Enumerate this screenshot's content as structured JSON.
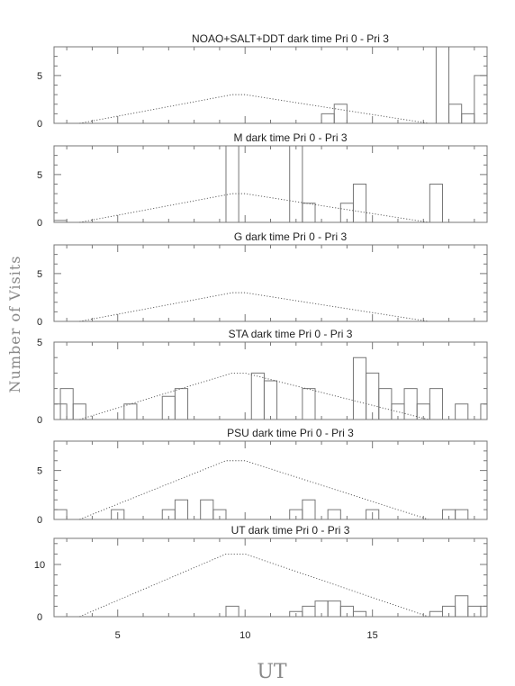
{
  "figure": {
    "ylabel": "Number of Visits",
    "xlabel": "UT"
  },
  "chart_data": [
    {
      "type": "histogram",
      "title": "NOAO+SALT+DDT dark time Pri 0 - Pri 3",
      "xlim": [
        2.5,
        19.5
      ],
      "ylim": [
        0,
        8
      ],
      "yticks": [
        0,
        5
      ],
      "xticks": [
        5,
        10,
        15
      ],
      "bin_width": 0.5,
      "bins": [
        [
          13.0,
          1
        ],
        [
          13.5,
          2
        ],
        [
          17.5,
          8
        ],
        [
          18.0,
          2
        ],
        [
          18.5,
          1
        ],
        [
          19.0,
          5
        ]
      ],
      "availability": [
        [
          3.5,
          0
        ],
        [
          9.5,
          3
        ],
        [
          10.0,
          3
        ],
        [
          17.2,
          0
        ]
      ]
    },
    {
      "type": "histogram",
      "title": "M    dark time Pri 0 - Pri 3",
      "xlim": [
        2.5,
        19.5
      ],
      "ylim": [
        0,
        8
      ],
      "yticks": [
        0,
        5
      ],
      "xticks": [
        5,
        10,
        15
      ],
      "bin_width": 0.5,
      "bins": [
        [
          2.5,
          0.2
        ],
        [
          9.25,
          8
        ],
        [
          11.75,
          8
        ],
        [
          12.25,
          2
        ],
        [
          13.75,
          2
        ],
        [
          14.25,
          4
        ],
        [
          17.25,
          4
        ]
      ],
      "availability": [
        [
          3.5,
          0
        ],
        [
          9.5,
          3
        ],
        [
          10.0,
          3
        ],
        [
          17.2,
          0
        ]
      ]
    },
    {
      "type": "histogram",
      "title": "G    dark time Pri 0 - Pri 3",
      "xlim": [
        2.5,
        19.5
      ],
      "ylim": [
        0,
        8
      ],
      "yticks": [
        0,
        5
      ],
      "xticks": [
        5,
        10,
        15
      ],
      "bin_width": 0.5,
      "bins": [],
      "availability": [
        [
          3.5,
          0
        ],
        [
          9.5,
          3
        ],
        [
          10.0,
          3
        ],
        [
          17.2,
          0
        ]
      ]
    },
    {
      "type": "histogram",
      "title": "STA    dark time Pri 0 - Pri 3",
      "xlim": [
        2.5,
        19.5
      ],
      "ylim": [
        0,
        5
      ],
      "yticks": [
        0,
        5
      ],
      "xticks": [
        5,
        10,
        15
      ],
      "bin_width": 0.5,
      "bins": [
        [
          2.5,
          1
        ],
        [
          2.75,
          2
        ],
        [
          3.25,
          1
        ],
        [
          5.25,
          1
        ],
        [
          6.75,
          1.5
        ],
        [
          7.25,
          2
        ],
        [
          10.25,
          3
        ],
        [
          10.75,
          2.5
        ],
        [
          12.25,
          2
        ],
        [
          14.25,
          4
        ],
        [
          14.75,
          3
        ],
        [
          15.25,
          2
        ],
        [
          15.75,
          1
        ],
        [
          16.25,
          2
        ],
        [
          16.75,
          1
        ],
        [
          17.25,
          2
        ],
        [
          18.25,
          1
        ],
        [
          19.25,
          1
        ]
      ],
      "availability": [
        [
          3.5,
          0
        ],
        [
          9.5,
          3
        ],
        [
          10.0,
          3
        ],
        [
          17.2,
          0
        ]
      ]
    },
    {
      "type": "histogram",
      "title": "PSU    dark time Pri 0 - Pri 3",
      "xlim": [
        2.5,
        19.5
      ],
      "ylim": [
        0,
        8
      ],
      "yticks": [
        0,
        5
      ],
      "xticks": [
        5,
        10,
        15
      ],
      "bin_width": 0.5,
      "bins": [
        [
          2.5,
          1
        ],
        [
          4.75,
          1
        ],
        [
          6.75,
          1
        ],
        [
          7.25,
          2
        ],
        [
          8.25,
          2
        ],
        [
          8.75,
          1
        ],
        [
          11.75,
          1
        ],
        [
          12.25,
          2
        ],
        [
          13.25,
          1
        ],
        [
          14.75,
          1
        ],
        [
          17.75,
          1
        ],
        [
          18.25,
          1
        ]
      ],
      "availability": [
        [
          3.5,
          0
        ],
        [
          9.25,
          6
        ],
        [
          10.0,
          6
        ],
        [
          17.2,
          0
        ]
      ]
    },
    {
      "type": "histogram",
      "title": "UT    dark time Pri 0 - Pri 3",
      "xlim": [
        2.5,
        19.5
      ],
      "ylim": [
        0,
        15
      ],
      "yticks": [
        0,
        10
      ],
      "xticks": [
        5,
        10,
        15
      ],
      "bin_width": 0.5,
      "bins": [
        [
          9.25,
          2
        ],
        [
          11.75,
          1
        ],
        [
          12.25,
          2
        ],
        [
          12.75,
          3
        ],
        [
          13.25,
          3
        ],
        [
          13.75,
          2
        ],
        [
          14.25,
          1
        ],
        [
          17.25,
          1
        ],
        [
          17.75,
          2
        ],
        [
          18.25,
          4
        ],
        [
          18.75,
          2
        ],
        [
          19.25,
          2
        ]
      ],
      "availability": [
        [
          3.5,
          0
        ],
        [
          9.25,
          12
        ],
        [
          10.0,
          12
        ],
        [
          17.2,
          0
        ]
      ]
    }
  ]
}
